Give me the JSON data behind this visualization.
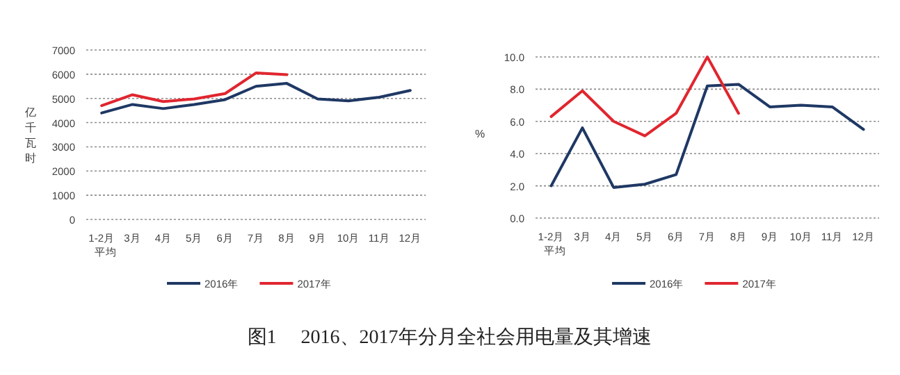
{
  "chart_data": [
    {
      "type": "line",
      "ylabel": "亿千瓦时",
      "categories": [
        "1-2月平均",
        "3月",
        "4月",
        "5月",
        "6月",
        "7月",
        "8月",
        "9月",
        "10月",
        "11月",
        "12月"
      ],
      "series": [
        {
          "name": "2016年",
          "color": "#1f3864",
          "values": [
            4400,
            4750,
            4580,
            4750,
            4950,
            5500,
            5620,
            4980,
            4900,
            5050,
            5330
          ]
        },
        {
          "name": "2017年",
          "color": "#e0262f",
          "values": [
            4700,
            5150,
            4870,
            4980,
            5200,
            6050,
            5980,
            null,
            null,
            null,
            null
          ]
        }
      ],
      "ylim": [
        0,
        7000
      ],
      "yticks": [
        0,
        1000,
        2000,
        3000,
        4000,
        5000,
        6000,
        7000
      ],
      "grid": "y",
      "legend": "bottom",
      "annotations": [
        "图1　 2016、2017年分月全社会用电量及其增速"
      ]
    },
    {
      "type": "line",
      "ylabel": "%",
      "categories": [
        "1-2月平均",
        "3月",
        "4月",
        "5月",
        "6月",
        "7月",
        "8月",
        "9月",
        "10月",
        "11月",
        "12月"
      ],
      "series": [
        {
          "name": "2016年",
          "color": "#1f3864",
          "values": [
            2.0,
            5.6,
            1.9,
            2.1,
            2.7,
            8.2,
            8.3,
            6.9,
            7.0,
            6.9,
            5.5
          ]
        },
        {
          "name": "2017年",
          "color": "#e0262f",
          "values": [
            6.3,
            7.9,
            6.0,
            5.1,
            6.5,
            10.0,
            6.5,
            null,
            null,
            null,
            null
          ]
        }
      ],
      "ylim": [
        0,
        10
      ],
      "yticks": [
        {
          "value": 0,
          "label": "0.0"
        },
        {
          "value": 2,
          "label": "2.0"
        },
        {
          "value": 4,
          "label": "4.0"
        },
        {
          "value": 6,
          "label": "6.0"
        },
        {
          "value": 8,
          "label": "8.0"
        },
        {
          "value": 10,
          "label": "10.0"
        }
      ],
      "grid": "y",
      "legend": "bottom"
    }
  ]
}
